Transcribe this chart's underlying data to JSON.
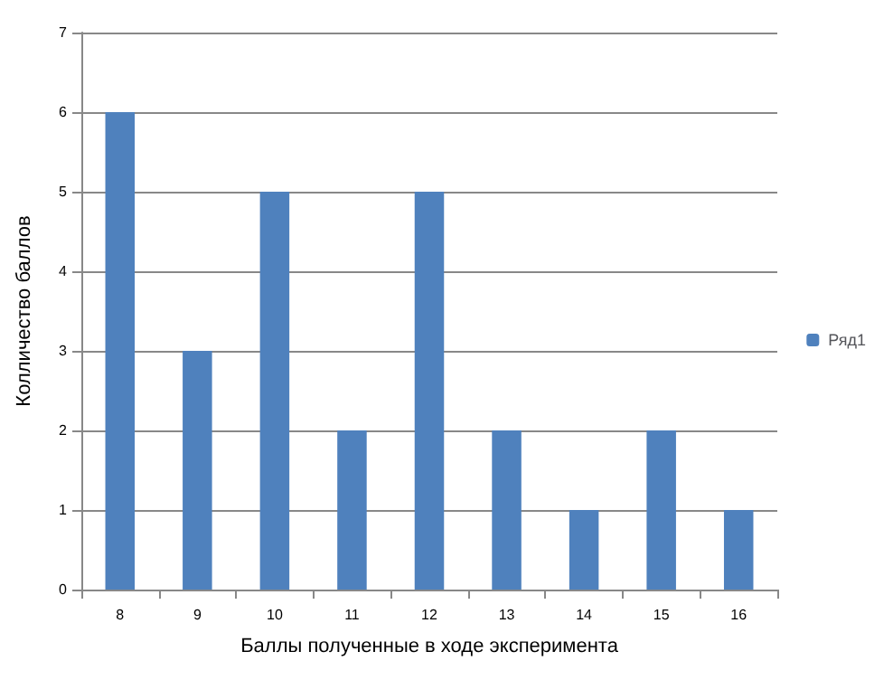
{
  "chart_data": {
    "type": "bar",
    "xlabel": "Баллы полученные в ходе эксперимента",
    "ylabel": "Колличество баллов",
    "categories": [
      "8",
      "9",
      "10",
      "11",
      "12",
      "13",
      "14",
      "15",
      "16"
    ],
    "series": [
      {
        "name": "Ряд1",
        "color": "#4f81bd",
        "values": [
          6,
          3,
          5,
          2,
          5,
          2,
          1,
          2,
          1
        ]
      }
    ],
    "ylim": [
      0,
      7
    ],
    "yticks": [
      0,
      1,
      2,
      3,
      4,
      5,
      6,
      7
    ],
    "grid": "y",
    "legend": "right"
  }
}
